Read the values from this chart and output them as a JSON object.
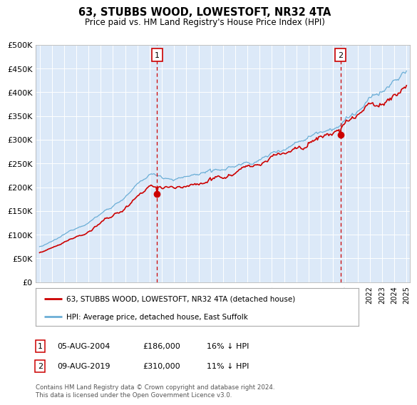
{
  "title": "63, STUBBS WOOD, LOWESTOFT, NR32 4TA",
  "subtitle": "Price paid vs. HM Land Registry's House Price Index (HPI)",
  "plot_bg_color": "#dce9f8",
  "hpi_color": "#6baed6",
  "price_color": "#cc0000",
  "sale1_x": 2004.6,
  "sale2_x": 2019.6,
  "sale1_price": 186000,
  "sale2_price": 310000,
  "legend_line1": "63, STUBBS WOOD, LOWESTOFT, NR32 4TA (detached house)",
  "legend_line2": "HPI: Average price, detached house, East Suffolk",
  "table_row1": [
    "1",
    "05-AUG-2004",
    "£186,000",
    "16% ↓ HPI"
  ],
  "table_row2": [
    "2",
    "09-AUG-2019",
    "£310,000",
    "11% ↓ HPI"
  ],
  "footer": "Contains HM Land Registry data © Crown copyright and database right 2024.\nThis data is licensed under the Open Government Licence v3.0.",
  "ylim": [
    0,
    500000
  ],
  "yticks": [
    0,
    50000,
    100000,
    150000,
    200000,
    250000,
    300000,
    350000,
    400000,
    450000,
    500000
  ],
  "xlim_start": 1994.7,
  "xlim_end": 2025.3
}
